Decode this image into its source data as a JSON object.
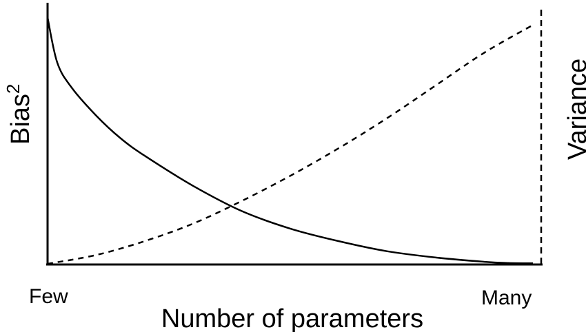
{
  "chart_data": {
    "type": "line",
    "xlabel": "Number of parameters",
    "ylabel_left": "Bias",
    "ylabel_left_superscript": "2",
    "ylabel_right": "Variance",
    "x_tick_labels": [
      "Few",
      "Many"
    ],
    "xlim": [
      0,
      1
    ],
    "ylim": [
      0,
      1
    ],
    "grid": false,
    "series": [
      {
        "name": "",
        "axis": "left",
        "style": "solid",
        "x": [
          0,
          0.02,
          0.05,
          0.1,
          0.15,
          0.2,
          0.3,
          0.4,
          0.5,
          0.6,
          0.7,
          0.8,
          0.9,
          0.95,
          1.0
        ],
        "y": [
          0.98,
          0.8,
          0.7,
          0.59,
          0.5,
          0.43,
          0.31,
          0.21,
          0.14,
          0.09,
          0.05,
          0.025,
          0.008,
          0.003,
          0.002
        ]
      },
      {
        "name": "",
        "axis": "right",
        "style": "dashed",
        "x": [
          0,
          0.1,
          0.2,
          0.3,
          0.4,
          0.5,
          0.6,
          0.7,
          0.8,
          0.9,
          1.0
        ],
        "y": [
          0.0,
          0.035,
          0.09,
          0.16,
          0.25,
          0.35,
          0.46,
          0.58,
          0.71,
          0.84,
          0.95
        ]
      }
    ]
  }
}
